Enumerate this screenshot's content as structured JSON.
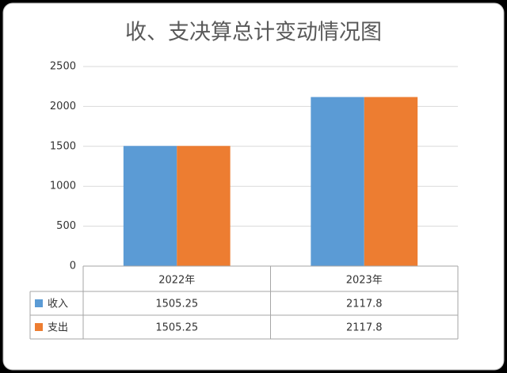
{
  "chart_data": {
    "type": "bar",
    "title": "收、支决算总计变动情况图",
    "categories": [
      "2022年",
      "2023年"
    ],
    "series": [
      {
        "name": "收入",
        "color": "#5b9bd5",
        "values": [
          1505.25,
          2117.8
        ]
      },
      {
        "name": "支出",
        "color": "#ed7d31",
        "values": [
          1505.25,
          2117.8
        ]
      }
    ],
    "ylim": [
      0,
      2500
    ],
    "yticks": [
      0,
      500,
      1000,
      1500,
      2000,
      2500
    ],
    "grid": true,
    "data_table": true
  }
}
